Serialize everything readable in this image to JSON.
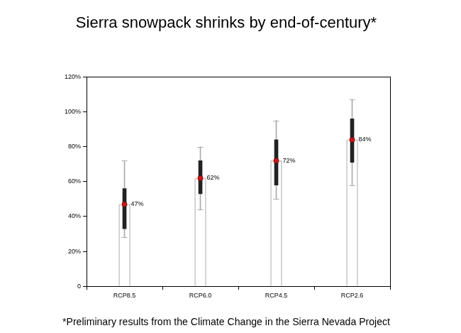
{
  "chart_data": {
    "type": "box",
    "title": "Sierra snowpack shrinks by end-of-century*",
    "annotations": [
      "*Preliminary results from the Climate Change in the Sierra Nevada Project"
    ],
    "categories": [
      "RCP8.5",
      "RCP6.0",
      "RCP4.5",
      "RCP2.6"
    ],
    "values": [
      47,
      62,
      72,
      84
    ],
    "value_labels": [
      "47%",
      "62%",
      "72%",
      "84%"
    ],
    "data_labels": true,
    "q1": [
      33,
      53,
      58,
      71
    ],
    "q3": [
      56,
      72,
      84,
      96
    ],
    "whisker_low": [
      28,
      44,
      50,
      58
    ],
    "whisker_high": [
      72,
      80,
      95,
      107
    ],
    "color": "#dd1111",
    "ylim": [
      0,
      120
    ],
    "yticks": [
      0,
      {
        "value": 20,
        "label": "20%"
      },
      {
        "value": 40,
        "label": "40%"
      },
      {
        "value": 60,
        "label": "60%"
      },
      {
        "value": 80,
        "label": "80%"
      },
      {
        "value": 100,
        "label": "100%"
      },
      {
        "value": 120,
        "label": "120%"
      }
    ],
    "grid": false
  }
}
